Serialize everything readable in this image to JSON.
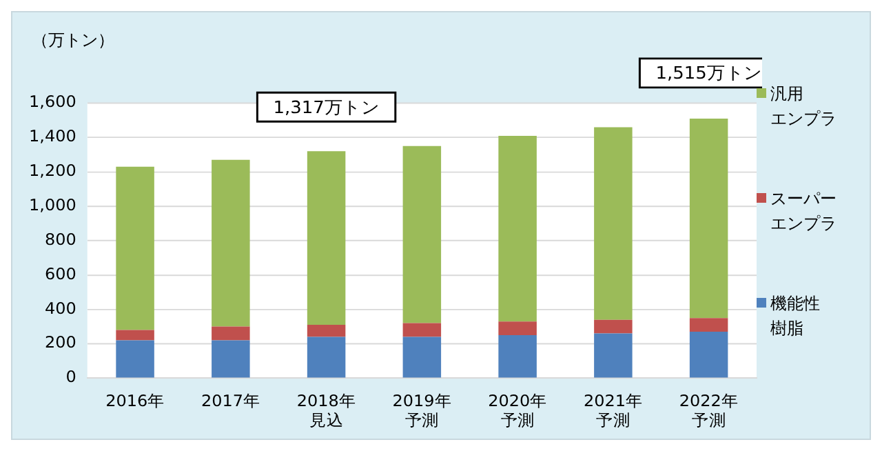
{
  "chart_data": {
    "type": "bar",
    "stacked": true,
    "ylabel": "（万トン）",
    "categories": [
      "2016年",
      "2017年",
      "2018年見込",
      "2019年予測",
      "2020年予測",
      "2021年予測",
      "2022年予測"
    ],
    "series": [
      {
        "name": "機能性樹脂",
        "color": "#4f81bd",
        "values": [
          220,
          220,
          240,
          240,
          250,
          260,
          270
        ]
      },
      {
        "name": "スーパーエンプラ",
        "color": "#c0504d",
        "values": [
          60,
          80,
          70,
          80,
          80,
          80,
          80
        ]
      },
      {
        "name": "汎用エンプラ",
        "color": "#9bbb59",
        "values": [
          950,
          970,
          1010,
          1030,
          1080,
          1120,
          1160
        ]
      }
    ],
    "ylim": [
      0,
      1600
    ],
    "yticks": [
      0,
      200,
      400,
      600,
      800,
      {
        "value": 1000,
        "label": "1,000"
      },
      {
        "value": 1200,
        "label": "1,200"
      },
      {
        "value": 1400,
        "label": "1,400"
      },
      {
        "value": 1600,
        "label": "1,600"
      }
    ],
    "grid": "y",
    "legend": "right",
    "annotations": [
      {
        "text": "1,317万トン",
        "x": "2018年見込",
        "y": 1317
      },
      {
        "text": "1,515万トン",
        "x": "2022年予測",
        "y": 1515
      }
    ]
  }
}
